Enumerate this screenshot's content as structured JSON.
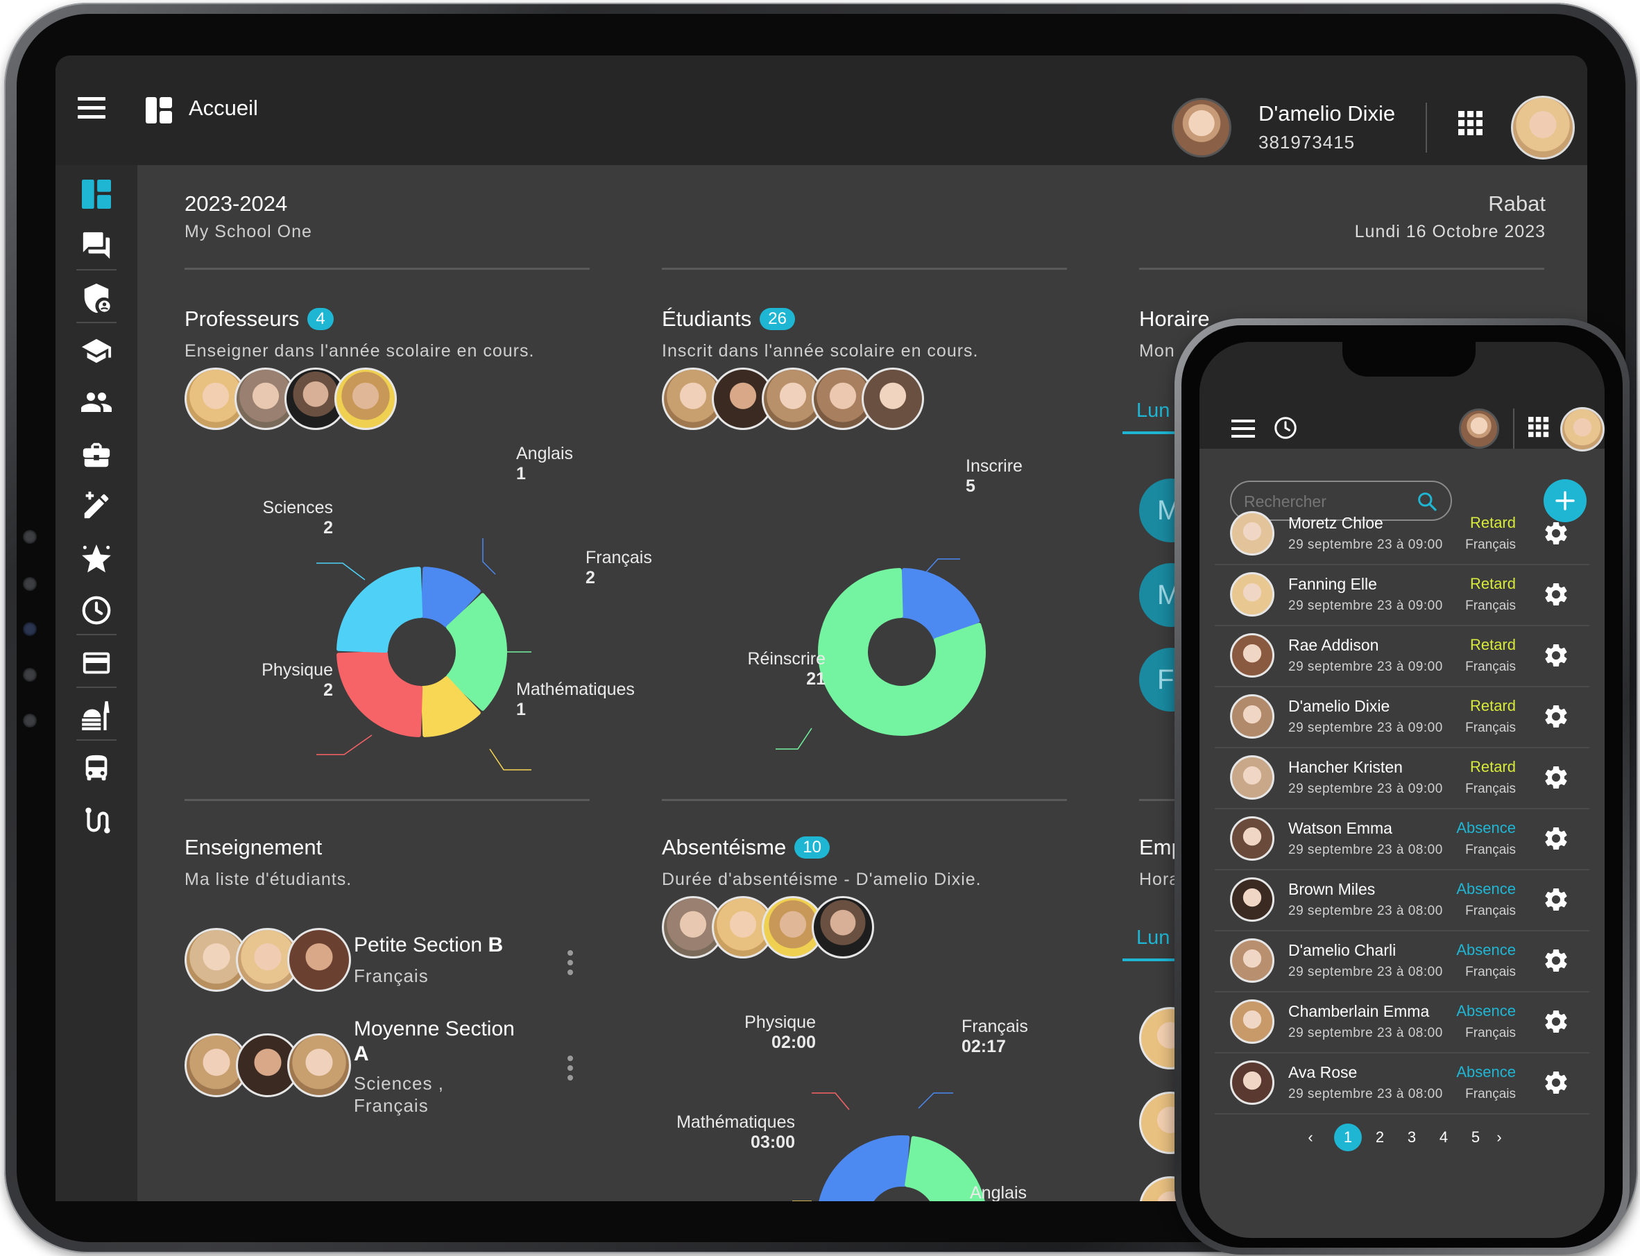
{
  "header": {
    "title": "Accueil",
    "user_name": "D'amelio Dixie",
    "user_id": "381973415"
  },
  "sidebar": {
    "icons": [
      "dashboard-icon",
      "chat-icon",
      "shield-user-icon",
      "graduation-cap-icon",
      "group-icon",
      "briefcase-icon",
      "edit-pencil-icon",
      "star-icon",
      "clock-icon",
      "credit-card-icon",
      "food-icon",
      "bus-icon",
      "route-icon"
    ]
  },
  "info": {
    "year": "2023-2024",
    "school": "My School One",
    "city": "Rabat",
    "date": "Lundi 16 Octobre 2023"
  },
  "professeurs": {
    "title": "Professeurs",
    "count": "4",
    "subtitle": "Enseigner dans l'année scolaire en cours."
  },
  "etudiants": {
    "title": "Étudiants",
    "count": "26",
    "subtitle": "Inscrit dans l'année scolaire en cours."
  },
  "horaire": {
    "title": "Horaire",
    "subtitle_partial": "Mon",
    "tab": "Lun",
    "letters": [
      "M",
      "M",
      "F"
    ]
  },
  "enseignement": {
    "title": "Enseignement",
    "subtitle": "Ma liste d'étudiants.",
    "classes": [
      {
        "name": "Petite Section",
        "suffix": "B",
        "courses": "Français"
      },
      {
        "name": "Moyenne Section",
        "suffix": "A",
        "courses_line1": "Sciences ,",
        "courses_line2": "Français"
      }
    ]
  },
  "absenteisme": {
    "title": "Absentéisme",
    "count": "10",
    "subtitle": "Durée d'absentéisme - D'amelio Dixie."
  },
  "emploi": {
    "title_partial": "Emp",
    "subtitle_partial": "Hora",
    "tab": "Lun"
  },
  "phone": {
    "search_placeholder": "Rechercher",
    "rows": [
      {
        "name": "Moretz Chloe",
        "date": "29 septembre 23 à 09:00",
        "status": "Retard",
        "course": "Français",
        "tone": "#e2c39a"
      },
      {
        "name": "Fanning Elle",
        "date": "29 septembre 23 à 09:00",
        "status": "Retard",
        "course": "Français",
        "tone": "#e8c890"
      },
      {
        "name": "Rae Addison",
        "date": "29 septembre 23 à 09:00",
        "status": "Retard",
        "course": "Français",
        "tone": "#8a5a40"
      },
      {
        "name": "D'amelio Dixie",
        "date": "29 septembre 23 à 09:00",
        "status": "Retard",
        "course": "Français",
        "tone": "#b08a6a"
      },
      {
        "name": "Hancher Kristen",
        "date": "29 septembre 23 à 09:00",
        "status": "Retard",
        "course": "Français",
        "tone": "#c8a888"
      },
      {
        "name": "Watson Emma",
        "date": "29 septembre 23 à 08:00",
        "status": "Absence",
        "course": "Français",
        "tone": "#6a4a3a"
      },
      {
        "name": "Brown Miles",
        "date": "29 septembre 23 à 08:00",
        "status": "Absence",
        "course": "Français",
        "tone": "#3a2a22"
      },
      {
        "name": "D'amelio Charli",
        "date": "29 septembre 23 à 08:00",
        "status": "Absence",
        "course": "Français",
        "tone": "#b89070"
      },
      {
        "name": "Chamberlain Emma",
        "date": "29 septembre 23 à 08:00",
        "status": "Absence",
        "course": "Français",
        "tone": "#c89a6a"
      },
      {
        "name": "Ava Rose",
        "date": "29 septembre 23 à 08:00",
        "status": "Absence",
        "course": "Français",
        "tone": "#5a3a30"
      }
    ],
    "pages": [
      "1",
      "2",
      "3",
      "4",
      "5"
    ],
    "current_page": "1"
  },
  "colors": {
    "accent": "#1fb6d4",
    "retard": "#d8ea3a",
    "blue": "#4c89f1",
    "green": "#74f3a0",
    "yellow": "#f7d754",
    "red": "#f66467",
    "cyan": "#4fd0f7"
  },
  "chart_data": [
    {
      "type": "pie",
      "categories": [
        "Anglais",
        "Français",
        "Mathématiques",
        "Physique",
        "Sciences"
      ],
      "values": [
        1,
        2,
        1,
        2,
        2
      ],
      "colors": [
        "#4c89f1",
        "#74f3a0",
        "#f7d754",
        "#f66467",
        "#4fd0f7"
      ],
      "value_labels": [
        "1",
        "2",
        "1",
        "2",
        "2"
      ]
    },
    {
      "type": "pie",
      "categories": [
        "Inscrire",
        "Réinscrire"
      ],
      "values": [
        5,
        21
      ],
      "colors": [
        "#4c89f1",
        "#74f3a0"
      ],
      "value_labels": [
        "5",
        "21"
      ]
    },
    {
      "type": "pie",
      "categories": [
        "Français",
        "Anglais",
        "Mathématiques",
        "Physique"
      ],
      "values": [
        137,
        137,
        180,
        120
      ],
      "colors": [
        "#4c89f1",
        "#74f3a0",
        "#f7d754",
        "#f66467"
      ],
      "value_labels": [
        "02:17",
        "",
        "03:00",
        "02:00"
      ]
    }
  ]
}
